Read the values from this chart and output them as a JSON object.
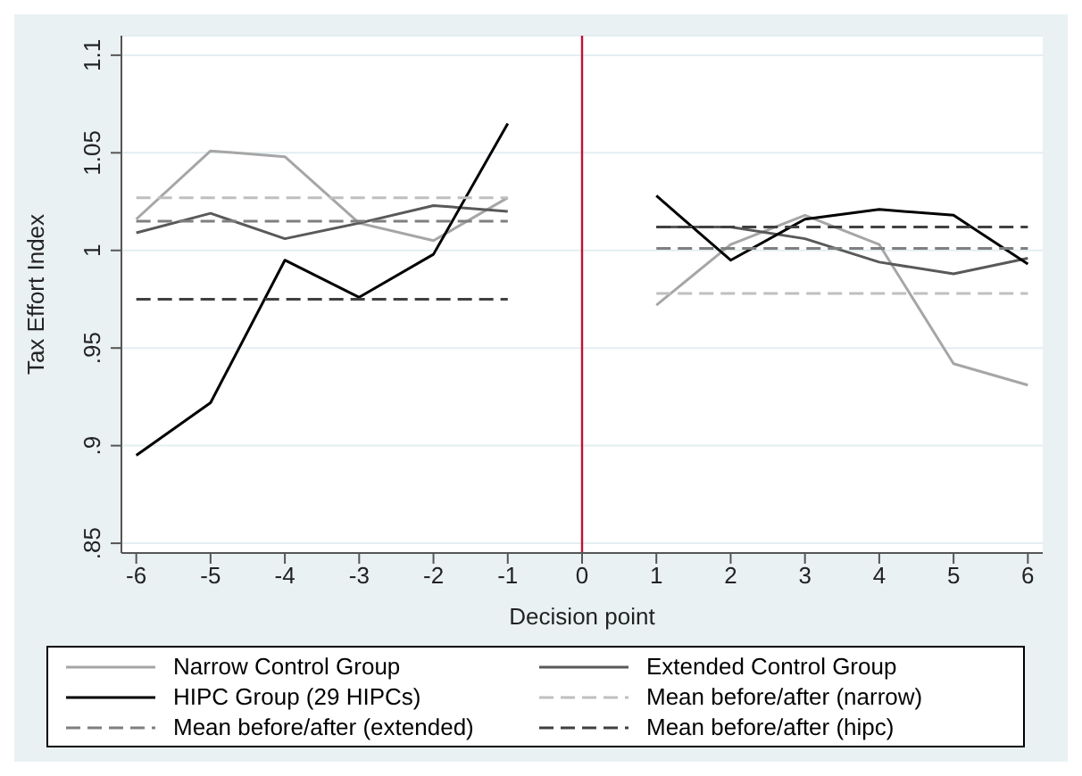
{
  "chart_data": {
    "type": "line",
    "xlabel": "Decision point",
    "ylabel": "Tax Effort Index",
    "xlim": [
      -6.2,
      6.2
    ],
    "xticks": [
      -6,
      -5,
      -4,
      -3,
      -2,
      -1,
      0,
      1,
      2,
      3,
      4,
      5,
      6
    ],
    "ylim": [
      0.845,
      1.11
    ],
    "yticks": [
      {
        "value": 0.85,
        "label": ".85"
      },
      {
        "value": 0.9,
        "label": ".9"
      },
      {
        "value": 0.95,
        "label": ".95"
      },
      1,
      1.05,
      1.1
    ],
    "grid": "y",
    "legend": "bottom",
    "marker": "none",
    "ref_lines": [
      {
        "axis": "x",
        "value": 0,
        "color": "#c0103a"
      }
    ],
    "series": [
      {
        "name": "Narrow Control Group",
        "color": "#a6a6a6",
        "x": [
          -6,
          -5,
          -4,
          -3,
          -2,
          -1,
          0,
          1,
          2,
          3,
          4,
          5,
          6
        ],
        "values": [
          1.016,
          1.051,
          1.048,
          1.014,
          1.005,
          1.027,
          null,
          0.972,
          1.003,
          1.018,
          1.003,
          0.942,
          0.931
        ]
      },
      {
        "name": "Extended Control Group",
        "color": "#595959",
        "x": [
          -6,
          -5,
          -4,
          -3,
          -2,
          -1,
          0,
          1,
          2,
          3,
          4,
          5,
          6
        ],
        "values": [
          1.009,
          1.019,
          1.006,
          1.014,
          1.023,
          1.02,
          null,
          1.012,
          1.012,
          1.006,
          0.994,
          0.988,
          0.996
        ]
      },
      {
        "name": "HIPC Group (29 HIPCs)",
        "color": "#000000",
        "x": [
          -6,
          -5,
          -4,
          -3,
          -2,
          -1,
          0,
          1,
          2,
          3,
          4,
          5,
          6
        ],
        "values": [
          0.895,
          0.922,
          0.995,
          0.976,
          0.998,
          1.065,
          null,
          1.028,
          0.995,
          1.016,
          1.021,
          1.018,
          0.993
        ]
      },
      {
        "name": "Mean before/after (narrow)",
        "color": "#bfbfbf",
        "line_style": "dashed",
        "x": [
          -6,
          -1,
          0,
          1,
          6
        ],
        "values": [
          1.027,
          1.027,
          null,
          0.978,
          0.978
        ]
      },
      {
        "name": "Mean before/after (extended)",
        "color": "#7f7f7f",
        "line_style": "dashed",
        "x": [
          -6,
          -1,
          0,
          1,
          6
        ],
        "values": [
          1.015,
          1.015,
          null,
          1.001,
          1.001
        ]
      },
      {
        "name": "Mean before/after (hipc)",
        "color": "#404040",
        "line_style": "dashed",
        "x": [
          -6,
          -1,
          0,
          1,
          6
        ],
        "values": [
          0.975,
          0.975,
          null,
          1.012,
          1.012
        ]
      }
    ]
  }
}
